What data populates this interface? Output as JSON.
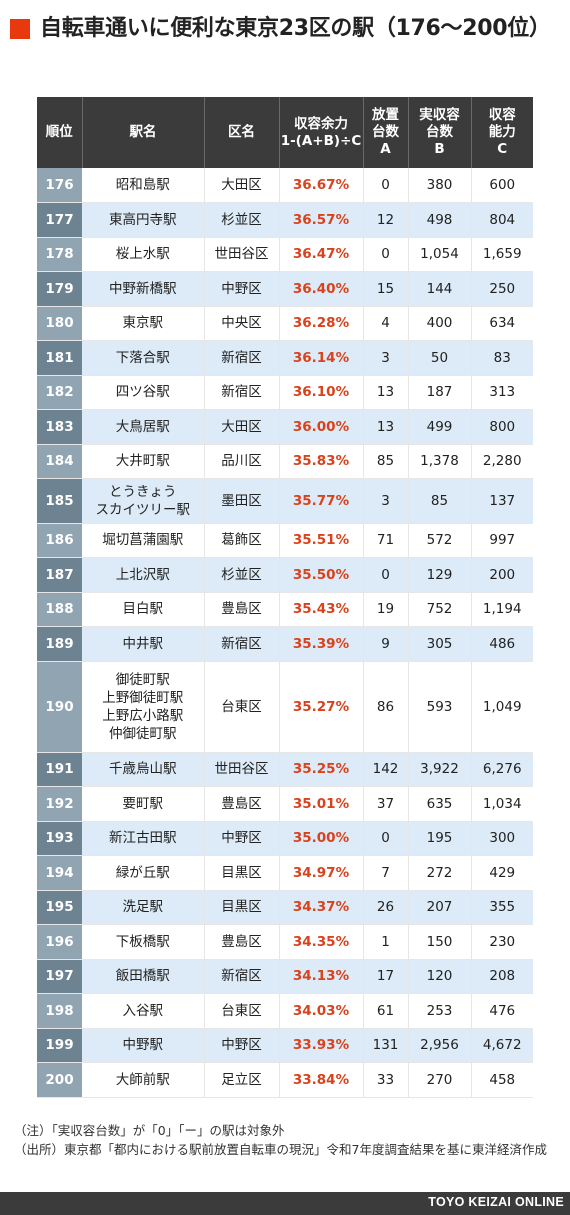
{
  "title": "自転車通いに便利な東京23区の駅（176〜200位）",
  "headers": {
    "rank": "順位",
    "station": "駅名",
    "ward": "区名",
    "capacity_margin": [
      "収容余力",
      "1-(A+B)÷C"
    ],
    "abandoned": [
      "放置",
      "台数",
      "A"
    ],
    "actual": [
      "実収容",
      "台数",
      "B"
    ],
    "capacity": [
      "収容",
      "能力",
      "C"
    ]
  },
  "rows": [
    {
      "rank": "176",
      "station": [
        "昭和島駅"
      ],
      "ward": "大田区",
      "margin": "36.67%",
      "a": "0",
      "b": "380",
      "c": "600"
    },
    {
      "rank": "177",
      "station": [
        "東高円寺駅"
      ],
      "ward": "杉並区",
      "margin": "36.57%",
      "a": "12",
      "b": "498",
      "c": "804"
    },
    {
      "rank": "178",
      "station": [
        "桜上水駅"
      ],
      "ward": "世田谷区",
      "margin": "36.47%",
      "a": "0",
      "b": "1,054",
      "c": "1,659"
    },
    {
      "rank": "179",
      "station": [
        "中野新橋駅"
      ],
      "ward": "中野区",
      "margin": "36.40%",
      "a": "15",
      "b": "144",
      "c": "250"
    },
    {
      "rank": "180",
      "station": [
        "東京駅"
      ],
      "ward": "中央区",
      "margin": "36.28%",
      "a": "4",
      "b": "400",
      "c": "634"
    },
    {
      "rank": "181",
      "station": [
        "下落合駅"
      ],
      "ward": "新宿区",
      "margin": "36.14%",
      "a": "3",
      "b": "50",
      "c": "83"
    },
    {
      "rank": "182",
      "station": [
        "四ツ谷駅"
      ],
      "ward": "新宿区",
      "margin": "36.10%",
      "a": "13",
      "b": "187",
      "c": "313"
    },
    {
      "rank": "183",
      "station": [
        "大鳥居駅"
      ],
      "ward": "大田区",
      "margin": "36.00%",
      "a": "13",
      "b": "499",
      "c": "800"
    },
    {
      "rank": "184",
      "station": [
        "大井町駅"
      ],
      "ward": "品川区",
      "margin": "35.83%",
      "a": "85",
      "b": "1,378",
      "c": "2,280"
    },
    {
      "rank": "185",
      "station": [
        "とうきょう",
        "スカイツリー駅"
      ],
      "ward": "墨田区",
      "margin": "35.77%",
      "a": "3",
      "b": "85",
      "c": "137"
    },
    {
      "rank": "186",
      "station": [
        "堀切菖蒲園駅"
      ],
      "ward": "葛飾区",
      "margin": "35.51%",
      "a": "71",
      "b": "572",
      "c": "997"
    },
    {
      "rank": "187",
      "station": [
        "上北沢駅"
      ],
      "ward": "杉並区",
      "margin": "35.50%",
      "a": "0",
      "b": "129",
      "c": "200"
    },
    {
      "rank": "188",
      "station": [
        "目白駅"
      ],
      "ward": "豊島区",
      "margin": "35.43%",
      "a": "19",
      "b": "752",
      "c": "1,194"
    },
    {
      "rank": "189",
      "station": [
        "中井駅"
      ],
      "ward": "新宿区",
      "margin": "35.39%",
      "a": "9",
      "b": "305",
      "c": "486"
    },
    {
      "rank": "190",
      "station": [
        "御徒町駅",
        "上野御徒町駅",
        "上野広小路駅",
        "仲御徒町駅"
      ],
      "ward": "台東区",
      "margin": "35.27%",
      "a": "86",
      "b": "593",
      "c": "1,049"
    },
    {
      "rank": "191",
      "station": [
        "千歳烏山駅"
      ],
      "ward": "世田谷区",
      "margin": "35.25%",
      "a": "142",
      "b": "3,922",
      "c": "6,276"
    },
    {
      "rank": "192",
      "station": [
        "要町駅"
      ],
      "ward": "豊島区",
      "margin": "35.01%",
      "a": "37",
      "b": "635",
      "c": "1,034"
    },
    {
      "rank": "193",
      "station": [
        "新江古田駅"
      ],
      "ward": "中野区",
      "margin": "35.00%",
      "a": "0",
      "b": "195",
      "c": "300"
    },
    {
      "rank": "194",
      "station": [
        "緑が丘駅"
      ],
      "ward": "目黒区",
      "margin": "34.97%",
      "a": "7",
      "b": "272",
      "c": "429"
    },
    {
      "rank": "195",
      "station": [
        "洗足駅"
      ],
      "ward": "目黒区",
      "margin": "34.37%",
      "a": "26",
      "b": "207",
      "c": "355"
    },
    {
      "rank": "196",
      "station": [
        "下板橋駅"
      ],
      "ward": "豊島区",
      "margin": "34.35%",
      "a": "1",
      "b": "150",
      "c": "230"
    },
    {
      "rank": "197",
      "station": [
        "飯田橋駅"
      ],
      "ward": "新宿区",
      "margin": "34.13%",
      "a": "17",
      "b": "120",
      "c": "208"
    },
    {
      "rank": "198",
      "station": [
        "入谷駅"
      ],
      "ward": "台東区",
      "margin": "34.03%",
      "a": "61",
      "b": "253",
      "c": "476"
    },
    {
      "rank": "199",
      "station": [
        "中野駅"
      ],
      "ward": "中野区",
      "margin": "33.93%",
      "a": "131",
      "b": "2,956",
      "c": "4,672"
    },
    {
      "rank": "200",
      "station": [
        "大師前駅"
      ],
      "ward": "足立区",
      "margin": "33.84%",
      "a": "33",
      "b": "270",
      "c": "458"
    }
  ],
  "notes": [
    "（注）「実収容台数」が「0」「ー」の駅は対象外",
    "（出所）東京都「都内における駅前放置自転車の現況」令和7年度調査結果を基に東洋経済作成"
  ],
  "footer": "TOYO KEIZAI ONLINE",
  "colors": {
    "accent": "#e8380d",
    "header_bg": "#3b3b3b",
    "row_alt_bg": "#dcebf7",
    "margin_text": "#d9421c"
  }
}
